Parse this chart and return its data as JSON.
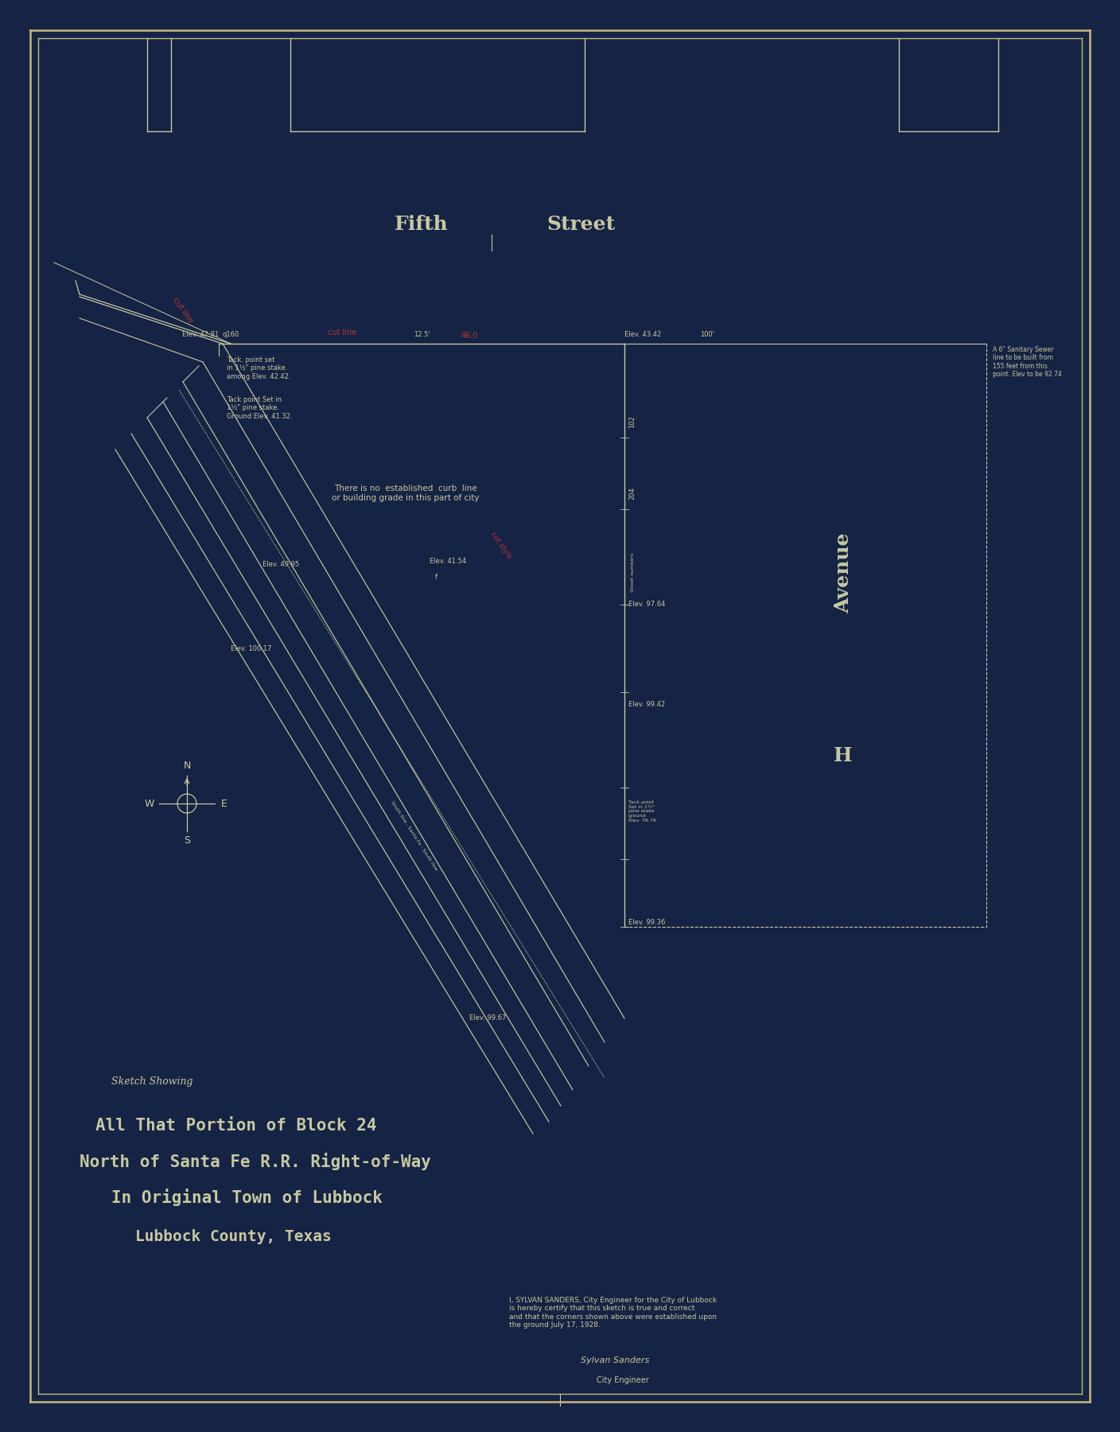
{
  "bg_color": "#152444",
  "paper_color": "#1a3055",
  "border_color": "#c8b87a",
  "line_color": "#c8c8a0",
  "text_color": "#c8c8a0",
  "red_text_color": "#bb3333",
  "title_line1": "Sketch Showing",
  "title_line2": "All That Portion of Block 24",
  "title_line3": "North of Santa Fe R.R. Right-of-Way",
  "title_line4": "In Original Town of Lubbock",
  "title_line5": "Lubbock County, Texas",
  "fifth_street_1": "Fifth",
  "fifth_street_2": "Street",
  "h_avenue_1": "Avenue",
  "h_avenue_2": "H",
  "note_text": "There is no  established  curb  line\nor building grade in this part of city",
  "cert_text": "I, SYLVAN SANDERS, City Engineer for the City of Lubbock\nis hereby certify that this sketch is true and correct\nand that the corners shown above were established upon\nthe ground July 17, 1928.",
  "page_width": 14.08,
  "page_height": 18.0,
  "dpi": 100
}
